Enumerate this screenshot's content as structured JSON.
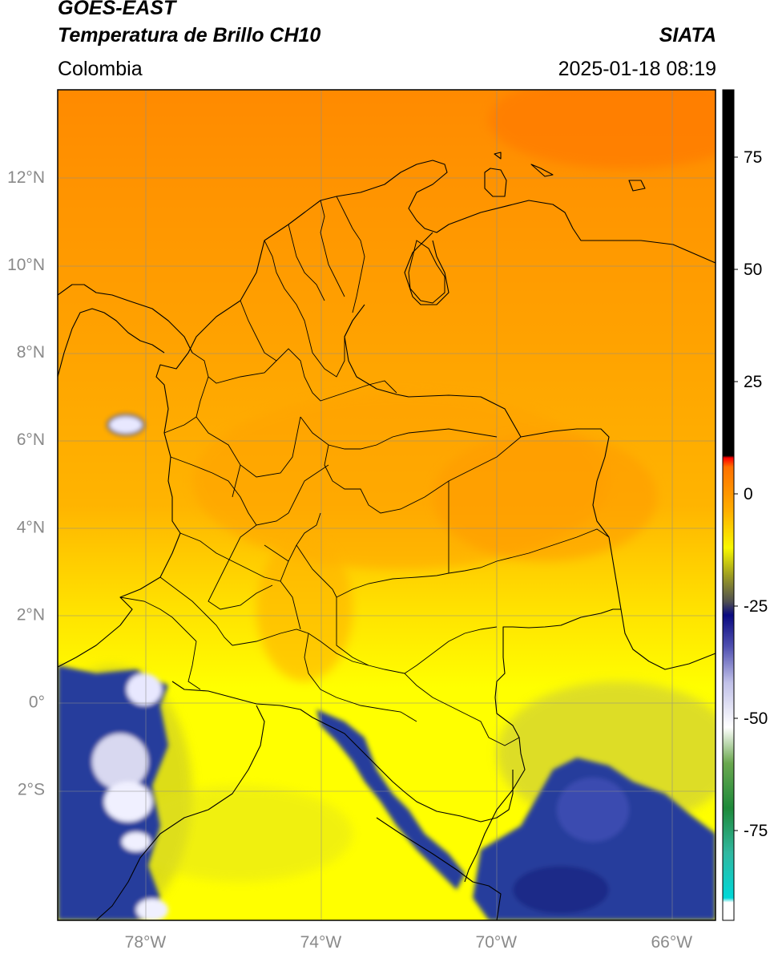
{
  "header": {
    "satellite": "GOES-EAST",
    "product": "Temperatura de Brillo CH10",
    "region": "Colombia",
    "source": "SIATA",
    "datetime": "2025-01-18 08:19"
  },
  "map": {
    "lon_range": [
      -80,
      -65
    ],
    "lat_range": [
      -5,
      14
    ],
    "lat_ticks": [
      {
        "value": 12,
        "label": "12°N"
      },
      {
        "value": 10,
        "label": "10°N"
      },
      {
        "value": 8,
        "label": "8°N"
      },
      {
        "value": 6,
        "label": "6°N"
      },
      {
        "value": 4,
        "label": "4°N"
      },
      {
        "value": 2,
        "label": "2°N"
      },
      {
        "value": 0,
        "label": "0°"
      },
      {
        "value": -2,
        "label": "2°S"
      }
    ],
    "lon_ticks": [
      {
        "value": -78,
        "label": "78°W"
      },
      {
        "value": -74,
        "label": "74°W"
      },
      {
        "value": -70,
        "label": "70°W"
      },
      {
        "value": -66,
        "label": "66°W"
      }
    ],
    "grid": true
  },
  "colorbar": {
    "range": [
      -95,
      90
    ],
    "ticks": [
      {
        "value": 75,
        "label": "75"
      },
      {
        "value": 50,
        "label": "50"
      },
      {
        "value": 25,
        "label": "25"
      },
      {
        "value": 0,
        "label": "0"
      },
      {
        "value": -25,
        "label": "-25"
      },
      {
        "value": -50,
        "label": "-50"
      },
      {
        "value": -75,
        "label": "-75"
      }
    ],
    "stops": [
      {
        "value": -95,
        "color": "#ffffff"
      },
      {
        "value": -91,
        "color": "#ffffff"
      },
      {
        "value": -90,
        "color": "#00d8d8"
      },
      {
        "value": -80,
        "color": "#30b8a0"
      },
      {
        "value": -70,
        "color": "#1e8a3a"
      },
      {
        "value": -60,
        "color": "#6aa84f"
      },
      {
        "value": -52,
        "color": "#ffffff"
      },
      {
        "value": -42,
        "color": "#c0c0e8"
      },
      {
        "value": -34,
        "color": "#5050b0"
      },
      {
        "value": -27,
        "color": "#0a0a80"
      },
      {
        "value": -24,
        "color": "#505050"
      },
      {
        "value": -18,
        "color": "#a0a020"
      },
      {
        "value": -12,
        "color": "#f8f800"
      },
      {
        "value": -4,
        "color": "#ffb000"
      },
      {
        "value": 6,
        "color": "#ff7000"
      },
      {
        "value": 8,
        "color": "#ff0000"
      },
      {
        "value": 8.5,
        "color": "#000000"
      },
      {
        "value": 90,
        "color": "#000000"
      }
    ]
  },
  "colors": {
    "cold_top": "#ff8000",
    "warm_mid": "#ffa000",
    "yellow": "#ffff00",
    "olive": "#c8c840",
    "cloud_blue": "#283c9c",
    "cloud_white": "#f0f0ff"
  }
}
